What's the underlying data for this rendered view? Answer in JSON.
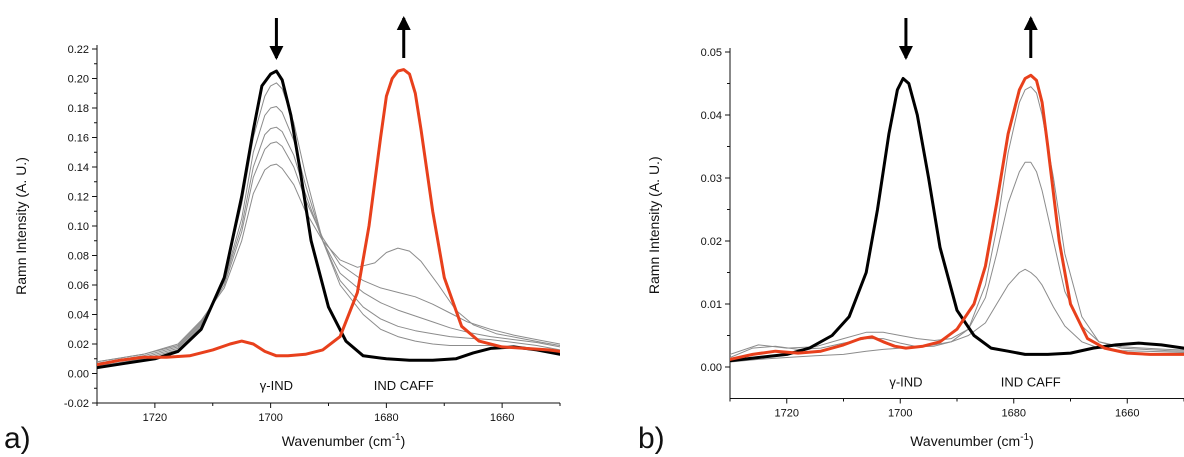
{
  "chart_data": [
    {
      "type": "line",
      "panel_label": "a)",
      "xlabel": "Wavenumber (cm",
      "xlabel_sup": "-1",
      "xlabel_tail": ")",
      "ylabel": "Ramn Intensity (A. U.)",
      "xlim": [
        1730,
        1650
      ],
      "ylim": [
        -0.02,
        0.22
      ],
      "x_ticks": [
        1720,
        1700,
        1680,
        1660
      ],
      "y_ticks": [
        -0.02,
        0.0,
        0.02,
        0.04,
        0.06,
        0.08,
        0.1,
        0.12,
        0.14,
        0.16,
        0.18,
        0.2,
        0.22
      ],
      "y_tick_labels": [
        "-0.02",
        "0.00",
        "0.02",
        "0.04",
        "0.06",
        "0.08",
        "0.10",
        "0.12",
        "0.14",
        "0.16",
        "0.18",
        "0.20",
        "0.22"
      ],
      "annotations": [
        {
          "text": "γ-IND",
          "x": 1699,
          "y": -0.003
        },
        {
          "text": "IND CAFF",
          "x": 1677,
          "y": -0.003
        }
      ],
      "arrows": [
        {
          "direction": "down",
          "x": 1699
        },
        {
          "direction": "up",
          "x": 1677
        }
      ],
      "series": [
        {
          "role": "start",
          "color": "#000000",
          "x": [
            1730,
            1725,
            1720,
            1716,
            1712,
            1708,
            1705,
            1703,
            1701.5,
            1700,
            1699,
            1698,
            1696.5,
            1695,
            1693,
            1690,
            1687,
            1684,
            1680,
            1676,
            1672,
            1668,
            1665,
            1662,
            1658,
            1654,
            1650
          ],
          "y": [
            0.004,
            0.007,
            0.01,
            0.015,
            0.03,
            0.065,
            0.12,
            0.165,
            0.195,
            0.203,
            0.205,
            0.199,
            0.175,
            0.14,
            0.09,
            0.045,
            0.022,
            0.012,
            0.01,
            0.009,
            0.009,
            0.01,
            0.014,
            0.017,
            0.018,
            0.016,
            0.013
          ]
        },
        {
          "role": "end",
          "color": "#e8401c",
          "x": [
            1730,
            1726,
            1722,
            1718,
            1714,
            1710,
            1707,
            1705,
            1703,
            1701,
            1699,
            1697,
            1694,
            1691,
            1688,
            1685,
            1683,
            1681,
            1680,
            1679,
            1678,
            1677,
            1676,
            1675,
            1674,
            1672,
            1670,
            1667,
            1664,
            1660,
            1656,
            1652,
            1650
          ],
          "y": [
            0.006,
            0.009,
            0.011,
            0.011,
            0.012,
            0.016,
            0.02,
            0.022,
            0.02,
            0.015,
            0.012,
            0.012,
            0.013,
            0.016,
            0.025,
            0.055,
            0.1,
            0.16,
            0.188,
            0.2,
            0.205,
            0.206,
            0.203,
            0.19,
            0.165,
            0.11,
            0.065,
            0.032,
            0.022,
            0.018,
            0.017,
            0.016,
            0.015
          ]
        },
        {
          "role": "intermediate",
          "color": "#8c8c8c",
          "x": [
            1730,
            1722,
            1716,
            1712,
            1708,
            1705,
            1703,
            1701,
            1700,
            1699,
            1698,
            1696,
            1694,
            1691,
            1688,
            1684,
            1681,
            1678,
            1675,
            1672,
            1669,
            1666,
            1662,
            1658,
            1654,
            1650
          ],
          "y": [
            0.005,
            0.01,
            0.016,
            0.032,
            0.065,
            0.115,
            0.16,
            0.188,
            0.195,
            0.197,
            0.193,
            0.17,
            0.135,
            0.09,
            0.06,
            0.04,
            0.03,
            0.025,
            0.022,
            0.02,
            0.019,
            0.019,
            0.019,
            0.018,
            0.016,
            0.014
          ]
        },
        {
          "role": "intermediate",
          "color": "#8c8c8c",
          "x": [
            1730,
            1722,
            1716,
            1712,
            1708,
            1705,
            1703,
            1701,
            1700,
            1699,
            1698,
            1696,
            1694,
            1691,
            1688,
            1684,
            1681,
            1678,
            1675,
            1672,
            1669,
            1666,
            1662,
            1658,
            1654,
            1650
          ],
          "y": [
            0.006,
            0.011,
            0.017,
            0.033,
            0.063,
            0.105,
            0.15,
            0.175,
            0.18,
            0.181,
            0.177,
            0.158,
            0.128,
            0.09,
            0.063,
            0.045,
            0.037,
            0.032,
            0.029,
            0.027,
            0.025,
            0.024,
            0.023,
            0.021,
            0.019,
            0.016
          ]
        },
        {
          "role": "intermediate",
          "color": "#8c8c8c",
          "x": [
            1730,
            1722,
            1716,
            1712,
            1708,
            1705,
            1703,
            1701,
            1700,
            1699,
            1698,
            1696,
            1694,
            1691,
            1688,
            1684,
            1681,
            1678,
            1675,
            1672,
            1669,
            1666,
            1662,
            1658,
            1654,
            1650
          ],
          "y": [
            0.007,
            0.012,
            0.018,
            0.034,
            0.062,
            0.1,
            0.14,
            0.162,
            0.166,
            0.167,
            0.164,
            0.148,
            0.122,
            0.09,
            0.068,
            0.055,
            0.048,
            0.043,
            0.039,
            0.035,
            0.031,
            0.028,
            0.025,
            0.023,
            0.021,
            0.018
          ]
        },
        {
          "role": "intermediate",
          "color": "#8c8c8c",
          "x": [
            1730,
            1722,
            1716,
            1712,
            1708,
            1705,
            1703,
            1701,
            1700,
            1699,
            1698,
            1696,
            1694,
            1691,
            1688,
            1684,
            1681,
            1678,
            1675,
            1672,
            1669,
            1666,
            1662,
            1658,
            1654,
            1650
          ],
          "y": [
            0.008,
            0.013,
            0.019,
            0.035,
            0.06,
            0.096,
            0.133,
            0.152,
            0.156,
            0.157,
            0.154,
            0.14,
            0.118,
            0.092,
            0.074,
            0.063,
            0.058,
            0.055,
            0.052,
            0.047,
            0.041,
            0.035,
            0.03,
            0.026,
            0.023,
            0.02
          ]
        },
        {
          "role": "intermediate",
          "color": "#8c8c8c",
          "x": [
            1730,
            1722,
            1716,
            1712,
            1708,
            1705,
            1703,
            1701,
            1700,
            1699,
            1698,
            1696,
            1694,
            1691,
            1688,
            1685,
            1682,
            1680,
            1678,
            1676,
            1674,
            1671,
            1668,
            1665,
            1661,
            1657,
            1653,
            1650
          ],
          "y": [
            0.008,
            0.013,
            0.02,
            0.036,
            0.058,
            0.09,
            0.122,
            0.138,
            0.141,
            0.142,
            0.139,
            0.128,
            0.11,
            0.09,
            0.077,
            0.072,
            0.075,
            0.082,
            0.085,
            0.083,
            0.076,
            0.06,
            0.043,
            0.033,
            0.027,
            0.024,
            0.021,
            0.019
          ]
        }
      ]
    },
    {
      "type": "line",
      "panel_label": "b)",
      "xlabel": "Wavenumber (cm",
      "xlabel_sup": "-1",
      "xlabel_tail": ")",
      "ylabel": "Ramn Intensity (A. U.)",
      "xlim": [
        1730,
        1650
      ],
      "ylim": [
        -0.005,
        0.05
      ],
      "x_ticks": [
        1720,
        1700,
        1680,
        1660
      ],
      "y_ticks": [
        0.0,
        0.01,
        0.02,
        0.03,
        0.04,
        0.05
      ],
      "y_tick_labels": [
        "0.00",
        "0.01",
        "0.02",
        "0.03",
        "0.04",
        "0.05"
      ],
      "annotations": [
        {
          "text": "γ-IND",
          "x": 1699,
          "y": -0.0012
        },
        {
          "text": "IND CAFF",
          "x": 1677,
          "y": -0.0012
        }
      ],
      "arrows": [
        {
          "direction": "down",
          "x": 1699
        },
        {
          "direction": "up",
          "x": 1677
        }
      ],
      "series": [
        {
          "role": "start",
          "color": "#000000",
          "x": [
            1730,
            1725,
            1720,
            1716,
            1712,
            1709,
            1706,
            1704,
            1702,
            1700.5,
            1699.5,
            1698.5,
            1697,
            1695,
            1693,
            1690,
            1687,
            1684,
            1681,
            1678,
            1674,
            1670,
            1666,
            1662,
            1658,
            1654,
            1650
          ],
          "y": [
            0.001,
            0.0015,
            0.002,
            0.003,
            0.005,
            0.008,
            0.015,
            0.025,
            0.037,
            0.044,
            0.0458,
            0.045,
            0.04,
            0.03,
            0.019,
            0.009,
            0.005,
            0.003,
            0.0025,
            0.002,
            0.002,
            0.0022,
            0.003,
            0.0035,
            0.0038,
            0.0035,
            0.003
          ]
        },
        {
          "role": "end",
          "color": "#e8401c",
          "x": [
            1730,
            1726,
            1722,
            1718,
            1714,
            1710,
            1707,
            1705,
            1703,
            1701,
            1699,
            1696,
            1693,
            1690,
            1687,
            1685,
            1683,
            1681,
            1679,
            1678,
            1677,
            1676,
            1675,
            1674,
            1672,
            1670,
            1667,
            1664,
            1660,
            1656,
            1652,
            1650
          ],
          "y": [
            0.0012,
            0.002,
            0.0025,
            0.0022,
            0.0025,
            0.0035,
            0.0045,
            0.0048,
            0.004,
            0.0033,
            0.003,
            0.0033,
            0.004,
            0.006,
            0.01,
            0.016,
            0.026,
            0.037,
            0.044,
            0.0458,
            0.0463,
            0.0455,
            0.042,
            0.035,
            0.02,
            0.01,
            0.0045,
            0.003,
            0.0022,
            0.002,
            0.002,
            0.002
          ]
        },
        {
          "role": "intermediate",
          "color": "#8c8c8c",
          "x": [
            1730,
            1726,
            1722,
            1718,
            1714,
            1710,
            1706,
            1703,
            1700,
            1697,
            1694,
            1691,
            1688,
            1685,
            1683,
            1681,
            1679,
            1678,
            1677,
            1676,
            1675,
            1673,
            1671,
            1668,
            1665,
            1661,
            1657,
            1653,
            1650
          ],
          "y": [
            0.0015,
            0.003,
            0.0033,
            0.0028,
            0.003,
            0.0038,
            0.0045,
            0.0045,
            0.0038,
            0.0032,
            0.0033,
            0.004,
            0.006,
            0.013,
            0.022,
            0.034,
            0.042,
            0.044,
            0.0445,
            0.0435,
            0.04,
            0.03,
            0.018,
            0.008,
            0.004,
            0.003,
            0.0028,
            0.0026,
            0.0025
          ]
        },
        {
          "role": "intermediate",
          "color": "#8c8c8c",
          "x": [
            1730,
            1725,
            1720,
            1715,
            1710,
            1706,
            1703,
            1700,
            1697,
            1694,
            1691,
            1688,
            1685,
            1683,
            1681,
            1679,
            1678,
            1677,
            1676,
            1675,
            1673,
            1671,
            1668,
            1665,
            1661,
            1657,
            1653,
            1650
          ],
          "y": [
            0.002,
            0.0035,
            0.003,
            0.0032,
            0.0045,
            0.0055,
            0.0055,
            0.005,
            0.0045,
            0.0042,
            0.0045,
            0.006,
            0.011,
            0.018,
            0.026,
            0.031,
            0.0325,
            0.0325,
            0.031,
            0.028,
            0.02,
            0.012,
            0.0065,
            0.004,
            0.0032,
            0.003,
            0.0028,
            0.0027
          ]
        },
        {
          "role": "intermediate",
          "color": "#8c8c8c",
          "x": [
            1730,
            1725,
            1720,
            1715,
            1710,
            1706,
            1703,
            1700,
            1697,
            1694,
            1691,
            1688,
            1685,
            1683,
            1681,
            1679,
            1678,
            1677,
            1676,
            1675,
            1673,
            1671,
            1668,
            1665,
            1661,
            1657,
            1653,
            1650
          ],
          "y": [
            0.0008,
            0.0012,
            0.0015,
            0.0018,
            0.002,
            0.0025,
            0.0028,
            0.003,
            0.0032,
            0.0035,
            0.004,
            0.005,
            0.007,
            0.01,
            0.013,
            0.015,
            0.0155,
            0.015,
            0.0142,
            0.013,
            0.0095,
            0.0065,
            0.004,
            0.003,
            0.0026,
            0.0025,
            0.0024,
            0.0023
          ]
        }
      ]
    }
  ]
}
